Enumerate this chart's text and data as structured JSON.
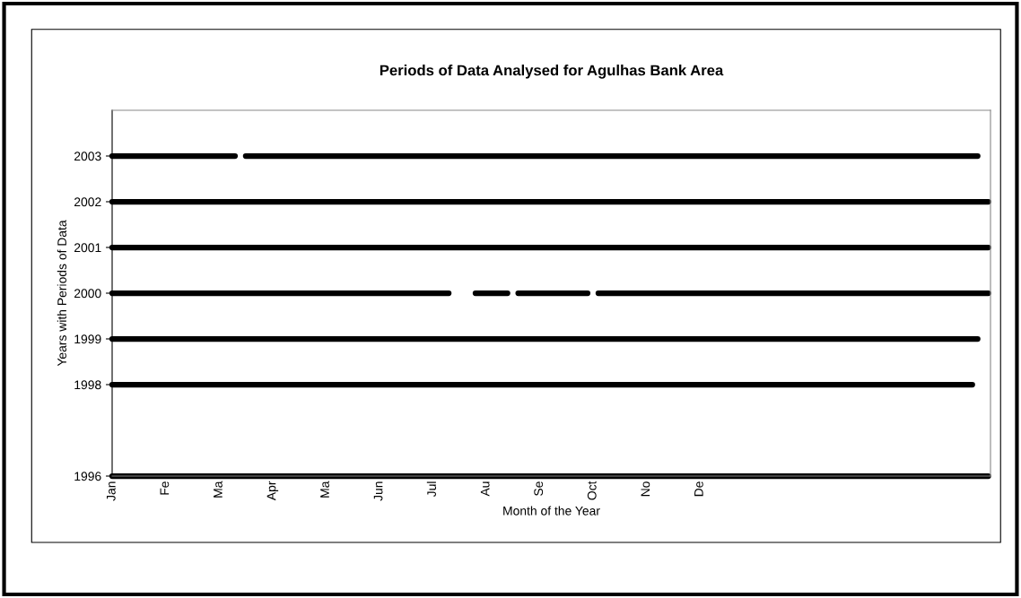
{
  "chart_data": {
    "type": "line",
    "title": "Periods of Data Analysed for Agulhas Bank Area",
    "xlabel": "Month of the Year",
    "ylabel": "Years with Periods of Data",
    "categories": [
      "Jan",
      null,
      null,
      null,
      null,
      null,
      null,
      null,
      null,
      null,
      "Fe",
      null,
      null,
      null,
      null,
      null,
      null,
      null,
      null,
      null,
      "Ma",
      null,
      null,
      null,
      null,
      null,
      null,
      null,
      null,
      null,
      "Apr",
      null,
      null,
      null,
      null,
      null,
      null,
      null,
      null,
      null,
      "Ma",
      null,
      null,
      null,
      null,
      null,
      null,
      null,
      null,
      null,
      "Jun",
      null,
      null,
      null,
      null,
      null,
      null,
      null,
      null,
      null,
      "Jul",
      null,
      null,
      null,
      null,
      null,
      null,
      null,
      null,
      null,
      "Au",
      null,
      null,
      null,
      null,
      null,
      null,
      null,
      null,
      null,
      "Se",
      null,
      null,
      null,
      null,
      null,
      null,
      null,
      null,
      null,
      "Oct",
      null,
      null,
      null,
      null,
      null,
      null,
      null,
      null,
      null,
      "No",
      null,
      null,
      null,
      null,
      null,
      null,
      null,
      null,
      null,
      "De",
      null,
      null,
      null,
      null,
      null,
      null,
      null,
      null,
      null,
      null,
      null,
      null,
      null,
      null,
      null,
      null,
      null,
      null,
      null,
      null,
      null,
      null,
      null,
      null,
      null,
      null,
      null,
      null,
      null,
      null,
      null,
      null,
      null,
      null,
      null,
      null,
      null,
      null,
      null,
      null,
      null,
      null,
      null,
      null,
      null,
      null,
      null,
      null,
      null,
      null,
      null,
      null,
      null,
      null
    ],
    "ylim": [
      1996,
      2004
    ],
    "yticks": [
      1996,
      1998,
      1999,
      2000,
      2001,
      2002,
      2003
    ],
    "grid": false,
    "legend": false,
    "marker": "none",
    "line_style": "solid",
    "series": [
      {
        "color": "#000000",
        "values": [
          1996,
          1996,
          1996,
          1996,
          1996,
          1996,
          1996,
          1996,
          1996,
          1996,
          1996,
          1996,
          1996,
          1996,
          1996,
          1996,
          1996,
          1996,
          1996,
          1996,
          1996,
          1996,
          1996,
          1996,
          1996,
          1996,
          1996,
          1996,
          1996,
          1996,
          1996,
          1996,
          1996,
          1996,
          1996,
          1996,
          1996,
          1996,
          1996,
          1996,
          1996,
          1996,
          1996,
          1996,
          1996,
          1996,
          1996,
          1996,
          1996,
          1996,
          1996,
          1996,
          1996,
          1996,
          1996,
          1996,
          1996,
          1996,
          1996,
          1996,
          1996,
          1996,
          1996,
          1996,
          1996,
          1996,
          1996,
          1996,
          1996,
          1996,
          1996,
          1996,
          1996,
          1996,
          1996,
          1996,
          1996,
          1996,
          1996,
          1996,
          1996,
          1996,
          1996,
          1996,
          1996,
          1996,
          1996,
          1996,
          1996,
          1996,
          1996,
          1996,
          1996,
          1996,
          1996,
          1996,
          1996,
          1996,
          1996,
          1996,
          1996,
          1996,
          1996,
          1996,
          1996,
          1996,
          1996,
          1996,
          1996,
          1996,
          1996,
          1996,
          1996,
          1996,
          1996,
          1996,
          1996,
          1996,
          1996,
          1996,
          1996,
          1996,
          1996,
          1996,
          1996,
          1996,
          1996,
          1996,
          1996,
          1996,
          1996,
          1996,
          1996,
          1996,
          1996,
          1996,
          1996,
          1996,
          1996,
          1996,
          1996,
          1996,
          1996,
          1996,
          1996,
          1996,
          1996,
          1996,
          1996,
          1996,
          1996,
          1996,
          1996,
          1996,
          1996,
          1996,
          1996,
          1996,
          1996,
          1996,
          1996,
          1996,
          1996,
          1996,
          1996
        ]
      },
      {
        "color": "#000000",
        "values": [
          1998,
          1998,
          1998,
          1998,
          1998,
          1998,
          1998,
          1998,
          1998,
          1998,
          1998,
          1998,
          1998,
          1998,
          1998,
          1998,
          1998,
          1998,
          1998,
          1998,
          1998,
          1998,
          1998,
          1998,
          1998,
          1998,
          1998,
          1998,
          1998,
          1998,
          1998,
          1998,
          1998,
          1998,
          1998,
          1998,
          1998,
          1998,
          1998,
          1998,
          1998,
          1998,
          1998,
          1998,
          1998,
          1998,
          1998,
          1998,
          1998,
          1998,
          1998,
          1998,
          1998,
          1998,
          1998,
          1998,
          1998,
          1998,
          1998,
          1998,
          1998,
          1998,
          1998,
          1998,
          1998,
          1998,
          1998,
          1998,
          1998,
          1998,
          1998,
          1998,
          1998,
          1998,
          1998,
          1998,
          1998,
          1998,
          1998,
          1998,
          1998,
          1998,
          1998,
          1998,
          1998,
          1998,
          1998,
          1998,
          1998,
          1998,
          1998,
          1998,
          1998,
          1998,
          1998,
          1998,
          1998,
          1998,
          1998,
          1998,
          1998,
          1998,
          1998,
          1998,
          1998,
          1998,
          1998,
          1998,
          1998,
          1998,
          1998,
          1998,
          1998,
          1998,
          1998,
          1998,
          1998,
          1998,
          1998,
          1998,
          1998,
          1998,
          1998,
          1998,
          1998,
          1998,
          1998,
          1998,
          1998,
          1998,
          1998,
          1998,
          1998,
          1998,
          1998,
          1998,
          1998,
          1998,
          1998,
          1998,
          1998,
          1998,
          1998,
          1998,
          1998,
          1998,
          1998,
          1998,
          1998,
          1998,
          1998,
          1998,
          1998,
          1998,
          1998,
          1998,
          1998,
          1998,
          1998,
          1998,
          1998,
          1998,
          null,
          null,
          null
        ]
      },
      {
        "color": "#000000",
        "values": [
          1999,
          1999,
          1999,
          1999,
          1999,
          1999,
          1999,
          1999,
          1999,
          1999,
          1999,
          1999,
          1999,
          1999,
          1999,
          1999,
          1999,
          1999,
          1999,
          1999,
          1999,
          1999,
          1999,
          1999,
          1999,
          1999,
          1999,
          1999,
          1999,
          1999,
          1999,
          1999,
          1999,
          1999,
          1999,
          1999,
          1999,
          1999,
          1999,
          1999,
          1999,
          1999,
          1999,
          1999,
          1999,
          1999,
          1999,
          1999,
          1999,
          1999,
          1999,
          1999,
          1999,
          1999,
          1999,
          1999,
          1999,
          1999,
          1999,
          1999,
          1999,
          1999,
          1999,
          1999,
          1999,
          1999,
          1999,
          1999,
          1999,
          1999,
          1999,
          1999,
          1999,
          1999,
          1999,
          1999,
          1999,
          1999,
          1999,
          1999,
          1999,
          1999,
          1999,
          1999,
          1999,
          1999,
          1999,
          1999,
          1999,
          1999,
          1999,
          1999,
          1999,
          1999,
          1999,
          1999,
          1999,
          1999,
          1999,
          1999,
          1999,
          1999,
          1999,
          1999,
          1999,
          1999,
          1999,
          1999,
          1999,
          1999,
          1999,
          1999,
          1999,
          1999,
          1999,
          1999,
          1999,
          1999,
          1999,
          1999,
          1999,
          1999,
          1999,
          1999,
          1999,
          1999,
          1999,
          1999,
          1999,
          1999,
          1999,
          1999,
          1999,
          1999,
          1999,
          1999,
          1999,
          1999,
          1999,
          1999,
          1999,
          1999,
          1999,
          1999,
          1999,
          1999,
          1999,
          1999,
          1999,
          1999,
          1999,
          1999,
          1999,
          1999,
          1999,
          1999,
          1999,
          1999,
          1999,
          1999,
          1999,
          1999,
          1999,
          null,
          null
        ]
      },
      {
        "color": "#000000",
        "values": [
          2000,
          2000,
          2000,
          2000,
          2000,
          2000,
          2000,
          2000,
          2000,
          2000,
          2000,
          2000,
          2000,
          2000,
          2000,
          2000,
          2000,
          2000,
          2000,
          2000,
          2000,
          2000,
          2000,
          2000,
          2000,
          2000,
          2000,
          2000,
          2000,
          2000,
          2000,
          2000,
          2000,
          2000,
          2000,
          2000,
          2000,
          2000,
          2000,
          2000,
          2000,
          2000,
          2000,
          2000,
          2000,
          2000,
          2000,
          2000,
          2000,
          2000,
          2000,
          2000,
          2000,
          2000,
          2000,
          2000,
          2000,
          2000,
          2000,
          2000,
          2000,
          2000,
          2000,
          2000,
          null,
          null,
          null,
          null,
          2000,
          2000,
          2000,
          2000,
          2000,
          2000,
          2000,
          null,
          2000,
          2000,
          2000,
          2000,
          2000,
          2000,
          2000,
          2000,
          2000,
          2000,
          2000,
          2000,
          2000,
          2000,
          null,
          2000,
          2000,
          2000,
          2000,
          2000,
          2000,
          2000,
          2000,
          2000,
          2000,
          2000,
          2000,
          2000,
          2000,
          2000,
          2000,
          2000,
          2000,
          2000,
          2000,
          2000,
          2000,
          2000,
          2000,
          2000,
          2000,
          2000,
          2000,
          2000,
          2000,
          2000,
          2000,
          2000,
          2000,
          2000,
          2000,
          2000,
          2000,
          2000,
          2000,
          2000,
          2000,
          2000,
          2000,
          2000,
          2000,
          2000,
          2000,
          2000,
          2000,
          2000,
          2000,
          2000,
          2000,
          2000,
          2000,
          2000,
          2000,
          2000,
          2000,
          2000,
          2000,
          2000,
          2000,
          2000,
          2000,
          2000,
          2000,
          2000,
          2000,
          2000,
          2000,
          2000,
          2000
        ]
      },
      {
        "color": "#000000",
        "values": [
          2001,
          2001,
          2001,
          2001,
          2001,
          2001,
          2001,
          2001,
          2001,
          2001,
          2001,
          2001,
          2001,
          2001,
          2001,
          2001,
          2001,
          2001,
          2001,
          2001,
          2001,
          2001,
          2001,
          2001,
          2001,
          2001,
          2001,
          2001,
          2001,
          2001,
          2001,
          2001,
          2001,
          2001,
          2001,
          2001,
          2001,
          2001,
          2001,
          2001,
          2001,
          2001,
          2001,
          2001,
          2001,
          2001,
          2001,
          2001,
          2001,
          2001,
          2001,
          2001,
          2001,
          2001,
          2001,
          2001,
          2001,
          2001,
          2001,
          2001,
          2001,
          2001,
          2001,
          2001,
          2001,
          2001,
          2001,
          2001,
          2001,
          2001,
          2001,
          2001,
          2001,
          2001,
          2001,
          2001,
          2001,
          2001,
          2001,
          2001,
          2001,
          2001,
          2001,
          2001,
          2001,
          2001,
          2001,
          2001,
          2001,
          2001,
          2001,
          2001,
          2001,
          2001,
          2001,
          2001,
          2001,
          2001,
          2001,
          2001,
          2001,
          2001,
          2001,
          2001,
          2001,
          2001,
          2001,
          2001,
          2001,
          2001,
          2001,
          2001,
          2001,
          2001,
          2001,
          2001,
          2001,
          2001,
          2001,
          2001,
          2001,
          2001,
          2001,
          2001,
          2001,
          2001,
          2001,
          2001,
          2001,
          2001,
          2001,
          2001,
          2001,
          2001,
          2001,
          2001,
          2001,
          2001,
          2001,
          2001,
          2001,
          2001,
          2001,
          2001,
          2001,
          2001,
          2001,
          2001,
          2001,
          2001,
          2001,
          2001,
          2001,
          2001,
          2001,
          2001,
          2001,
          2001,
          2001,
          2001,
          2001,
          2001,
          2001,
          2001,
          2001
        ]
      },
      {
        "color": "#000000",
        "values": [
          2002,
          2002,
          2002,
          2002,
          2002,
          2002,
          2002,
          2002,
          2002,
          2002,
          2002,
          2002,
          2002,
          2002,
          2002,
          2002,
          2002,
          2002,
          2002,
          2002,
          2002,
          2002,
          2002,
          2002,
          2002,
          2002,
          2002,
          2002,
          2002,
          2002,
          2002,
          2002,
          2002,
          2002,
          2002,
          2002,
          2002,
          2002,
          2002,
          2002,
          2002,
          2002,
          2002,
          2002,
          2002,
          2002,
          2002,
          2002,
          2002,
          2002,
          2002,
          2002,
          2002,
          2002,
          2002,
          2002,
          2002,
          2002,
          2002,
          2002,
          2002,
          2002,
          2002,
          2002,
          2002,
          2002,
          2002,
          2002,
          2002,
          2002,
          2002,
          2002,
          2002,
          2002,
          2002,
          2002,
          2002,
          2002,
          2002,
          2002,
          2002,
          2002,
          2002,
          2002,
          2002,
          2002,
          2002,
          2002,
          2002,
          2002,
          2002,
          2002,
          2002,
          2002,
          2002,
          2002,
          2002,
          2002,
          2002,
          2002,
          2002,
          2002,
          2002,
          2002,
          2002,
          2002,
          2002,
          2002,
          2002,
          2002,
          2002,
          2002,
          2002,
          2002,
          2002,
          2002,
          2002,
          2002,
          2002,
          2002,
          2002,
          2002,
          2002,
          2002,
          2002,
          2002,
          2002,
          2002,
          2002,
          2002,
          2002,
          2002,
          2002,
          2002,
          2002,
          2002,
          2002,
          2002,
          2002,
          2002,
          2002,
          2002,
          2002,
          2002,
          2002,
          2002,
          2002,
          2002,
          2002,
          2002,
          2002,
          2002,
          2002,
          2002,
          2002,
          2002,
          2002,
          2002,
          2002,
          2002,
          2002,
          2002,
          2002,
          2002,
          2002
        ]
      },
      {
        "color": "#000000",
        "values": [
          2003,
          2003,
          2003,
          2003,
          2003,
          2003,
          2003,
          2003,
          2003,
          2003,
          2003,
          2003,
          2003,
          2003,
          2003,
          2003,
          2003,
          2003,
          2003,
          2003,
          2003,
          2003,
          2003,
          2003,
          null,
          2003,
          2003,
          2003,
          2003,
          2003,
          2003,
          2003,
          2003,
          2003,
          2003,
          2003,
          2003,
          2003,
          2003,
          2003,
          2003,
          2003,
          2003,
          2003,
          2003,
          2003,
          2003,
          2003,
          2003,
          2003,
          2003,
          2003,
          2003,
          2003,
          2003,
          2003,
          2003,
          2003,
          2003,
          2003,
          2003,
          2003,
          2003,
          2003,
          2003,
          2003,
          2003,
          2003,
          2003,
          2003,
          2003,
          2003,
          2003,
          2003,
          2003,
          2003,
          2003,
          2003,
          2003,
          2003,
          2003,
          2003,
          2003,
          2003,
          2003,
          2003,
          2003,
          2003,
          2003,
          2003,
          2003,
          2003,
          2003,
          2003,
          2003,
          2003,
          2003,
          2003,
          2003,
          2003,
          2003,
          2003,
          2003,
          2003,
          2003,
          2003,
          2003,
          2003,
          2003,
          2003,
          2003,
          2003,
          2003,
          2003,
          2003,
          2003,
          2003,
          2003,
          2003,
          2003,
          2003,
          2003,
          2003,
          2003,
          2003,
          2003,
          2003,
          2003,
          2003,
          2003,
          2003,
          2003,
          2003,
          2003,
          2003,
          2003,
          2003,
          2003,
          2003,
          2003,
          2003,
          2003,
          2003,
          2003,
          2003,
          2003,
          2003,
          2003,
          2003,
          2003,
          2003,
          2003,
          2003,
          2003,
          2003,
          2003,
          2003,
          2003,
          2003,
          2003,
          2003,
          2003,
          2003,
          null,
          null
        ]
      }
    ]
  }
}
